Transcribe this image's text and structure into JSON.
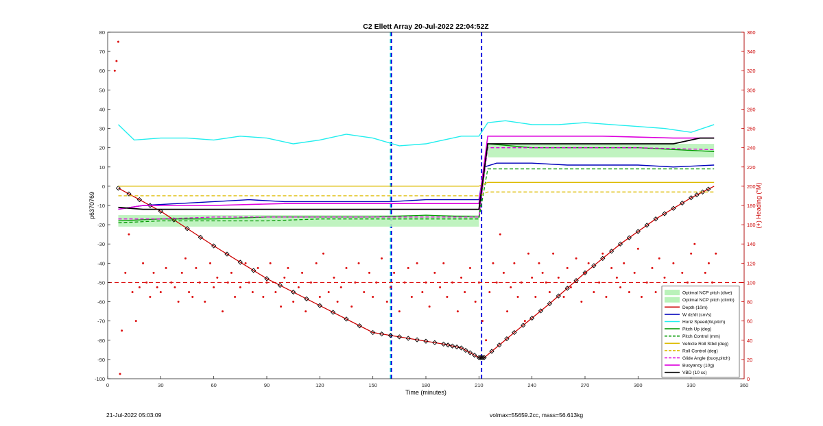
{
  "chart_data": {
    "type": "line",
    "title": "C2 Ellett Array 20-Jul-2022 22:04:52Z",
    "xlabel": "Time (minutes)",
    "ylabel": "p6370769",
    "y2label": "(+) Heading (°M)",
    "xlim": [
      0,
      360
    ],
    "ylim": [
      -100,
      80
    ],
    "y2lim": [
      0,
      360
    ],
    "xticks": [
      0,
      30,
      60,
      90,
      120,
      150,
      180,
      210,
      240,
      270,
      300,
      330,
      360
    ],
    "yticks": [
      -100,
      -90,
      -80,
      -70,
      -60,
      -50,
      -40,
      -30,
      -20,
      -10,
      0,
      10,
      20,
      30,
      40,
      50,
      60,
      70,
      80
    ],
    "y2ticks": [
      0,
      20,
      40,
      60,
      80,
      100,
      120,
      140,
      160,
      180,
      200,
      220,
      240,
      260,
      280,
      300,
      320,
      340,
      360
    ],
    "grid": false,
    "legend_position": "bottom-right",
    "colors": {
      "depth": "#cc0000",
      "heading": "#dd1111",
      "wdzdt": "#0000bb",
      "horiz": "#22eeee",
      "pitch_up": "#009900",
      "roll": "#ddbb00",
      "buoyancy": "#dd00dd",
      "vbd": "#000000",
      "ncp_band": "#b9f2b9"
    },
    "vertical_markers": [
      {
        "x": 160,
        "color": "#00cccc",
        "style": "dash"
      },
      {
        "x": 160.5,
        "color": "#0000dd",
        "style": "dash"
      },
      {
        "x": 211.5,
        "color": "#0000dd",
        "style": "dash"
      }
    ],
    "heading_reference": 100,
    "series": [
      {
        "name": "Optimal NCP pitch (dive)",
        "kind": "band",
        "x": [
          6,
          210
        ],
        "y": [
          -21,
          -15
        ]
      },
      {
        "name": "Optimal NCP pitch (climb)",
        "kind": "band",
        "x": [
          215,
          343
        ],
        "y": [
          15,
          22
        ]
      },
      {
        "name": "Depth (10m)",
        "x": [
          6,
          30,
          60,
          90,
          120,
          150,
          170,
          190,
          200,
          210,
          213,
          230,
          250,
          270,
          290,
          310,
          330,
          343
        ],
        "y": [
          -1,
          -13,
          -31,
          -48,
          -62,
          -76,
          -79,
          -82,
          -84,
          -89,
          -89,
          -76,
          -61,
          -45,
          -30,
          -17,
          -6,
          0
        ]
      },
      {
        "name": "W dz/dt (cm/s)",
        "x": [
          6,
          20,
          40,
          60,
          80,
          100,
          120,
          140,
          160,
          180,
          200,
          210,
          213,
          220,
          240,
          260,
          280,
          300,
          320,
          343
        ],
        "y": [
          -12,
          -10,
          -9,
          -8,
          -7,
          -8,
          -8,
          -8,
          -8,
          -7,
          -7,
          -7,
          10,
          12,
          12,
          11,
          11,
          11,
          10,
          11
        ]
      },
      {
        "name": "Horiz Speed(W,pitch)",
        "x": [
          6,
          15,
          30,
          45,
          60,
          75,
          90,
          105,
          120,
          135,
          150,
          165,
          180,
          190,
          200,
          210,
          215,
          225,
          240,
          255,
          270,
          285,
          300,
          315,
          330,
          343
        ],
        "y": [
          32,
          24,
          25,
          25,
          24,
          26,
          25,
          22,
          24,
          27,
          25,
          21,
          22,
          24,
          26,
          26,
          33,
          34,
          32,
          32,
          33,
          32,
          31,
          30,
          28,
          32
        ]
      },
      {
        "name": "Pitch Up (deg)",
        "x": [
          6,
          30,
          60,
          90,
          120,
          150,
          180,
          210,
          215,
          240,
          270,
          300,
          343
        ],
        "y": [
          -18,
          -17,
          -17,
          -16,
          -16,
          -16,
          -15,
          -16,
          22,
          20,
          20,
          20,
          18
        ]
      },
      {
        "name": "Pitch Control (mm)",
        "x": [
          6,
          30,
          60,
          90,
          120,
          150,
          180,
          210,
          215,
          240,
          270,
          300,
          343
        ],
        "y": [
          -19,
          -18,
          -18,
          -18,
          -17,
          -17,
          -17,
          -17,
          9,
          9,
          9,
          9,
          9
        ]
      },
      {
        "name": "Vehicle Roll Stbd (deg)",
        "x": [
          6,
          30,
          60,
          90,
          120,
          150,
          180,
          210,
          215,
          240,
          270,
          300,
          343
        ],
        "y": [
          0,
          0,
          0,
          0,
          0,
          0,
          0,
          0,
          2,
          2,
          2,
          2,
          2
        ]
      },
      {
        "name": "Roll Control (deg)",
        "x": [
          6,
          30,
          60,
          90,
          120,
          150,
          180,
          210,
          215,
          240,
          270,
          300,
          343
        ],
        "y": [
          -5,
          -5,
          -5,
          -5,
          -5,
          -5,
          -5,
          -5,
          -3,
          -3,
          -3,
          -3,
          -3
        ]
      },
      {
        "name": "Glide Angle (buoy,pitch)",
        "x": [
          6,
          30,
          60,
          90,
          120,
          150,
          180,
          210,
          215,
          240,
          270,
          300,
          343
        ],
        "y": [
          -17,
          -17,
          -16,
          -16,
          -16,
          -16,
          -16,
          -16,
          20,
          20,
          20,
          20,
          19
        ]
      },
      {
        "name": "Buoyancy (10g)",
        "x": [
          6,
          20,
          60,
          100,
          140,
          180,
          210,
          215,
          240,
          280,
          320,
          343
        ],
        "y": [
          -12,
          -10,
          -10,
          -9,
          -9,
          -9,
          -9,
          26,
          26,
          26,
          25,
          25
        ]
      },
      {
        "name": "VBD (10 cc)",
        "x": [
          6,
          20,
          60,
          100,
          140,
          180,
          210,
          215,
          240,
          280,
          320,
          335,
          343
        ],
        "y": [
          -11,
          -12,
          -12,
          -12,
          -12,
          -12,
          -12,
          22,
          22,
          22,
          22,
          25,
          25
        ]
      }
    ],
    "heading_points": {
      "x": [
        4,
        5,
        6,
        7,
        8,
        10,
        12,
        14,
        16,
        18,
        20,
        22,
        24,
        26,
        28,
        30,
        33,
        36,
        38,
        40,
        42,
        44,
        46,
        48,
        50,
        52,
        55,
        58,
        60,
        62,
        65,
        68,
        70,
        72,
        75,
        78,
        80,
        82,
        85,
        88,
        90,
        92,
        95,
        98,
        100,
        102,
        105,
        108,
        110,
        112,
        115,
        118,
        120,
        122,
        125,
        128,
        130,
        132,
        135,
        138,
        140,
        142,
        145,
        148,
        150,
        152,
        155,
        158,
        160,
        162,
        165,
        168,
        170,
        172,
        175,
        178,
        180,
        182,
        185,
        188,
        190,
        192,
        195,
        198,
        200,
        202,
        205,
        208,
        210,
        212,
        214,
        216,
        218,
        220,
        222,
        224,
        226,
        228,
        230,
        232,
        234,
        236,
        238,
        240,
        242,
        244,
        246,
        248,
        250,
        252,
        255,
        258,
        260,
        262,
        265,
        268,
        270,
        272,
        275,
        278,
        280,
        282,
        285,
        288,
        290,
        292,
        295,
        298,
        300,
        302,
        305,
        308,
        310,
        312,
        315,
        318,
        320,
        322,
        325,
        328,
        330,
        332,
        335,
        338,
        340,
        342,
        344
      ],
      "y": [
        320,
        330,
        350,
        5,
        50,
        110,
        150,
        90,
        60,
        95,
        120,
        100,
        85,
        110,
        95,
        90,
        115,
        100,
        95,
        80,
        110,
        125,
        90,
        85,
        115,
        100,
        80,
        120,
        95,
        105,
        70,
        100,
        110,
        85,
        95,
        120,
        100,
        90,
        115,
        85,
        100,
        120,
        90,
        75,
        105,
        115,
        80,
        95,
        110,
        70,
        100,
        120,
        85,
        130,
        90,
        105,
        80,
        95,
        115,
        75,
        100,
        120,
        90,
        110,
        85,
        100,
        125,
        80,
        95,
        110,
        70,
        100,
        115,
        85,
        120,
        90,
        100,
        75,
        110,
        95,
        120,
        85,
        100,
        70,
        105,
        90,
        115,
        80,
        100,
        60,
        40,
        90,
        120,
        100,
        150,
        110,
        70,
        95,
        120,
        85,
        100,
        60,
        130,
        105,
        85,
        120,
        110,
        100,
        90,
        130,
        105,
        85,
        115,
        95,
        125,
        80,
        110,
        120,
        90,
        100,
        130,
        85,
        115,
        105,
        95,
        120,
        90,
        110,
        135,
        85,
        100,
        115,
        90,
        125,
        105,
        95,
        120,
        85,
        110,
        100,
        130,
        140,
        95,
        110,
        120,
        100,
        130
      ]
    }
  },
  "footer": {
    "left": "21-Jul-2022 05:03:09",
    "right": "volmax=55659.2cc, mass=56.613kg"
  }
}
